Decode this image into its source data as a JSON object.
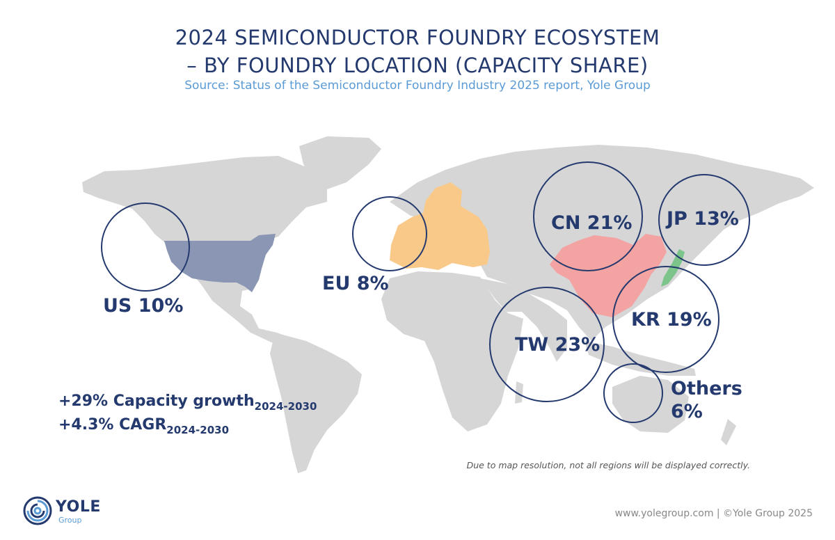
{
  "title": {
    "line1": "2024 SEMICONDUCTOR FOUNDRY ECOSYSTEM",
    "line2": "– BY FOUNDRY LOCATION (CAPACITY SHARE)"
  },
  "subtitle": "Source: Status of the Semiconductor Foundry Industry 2025 report, Yole Group",
  "colors": {
    "title": "#243a6e",
    "subtitle": "#5b9bd5",
    "land": "#d6d6d6",
    "us": "#8a96b3",
    "eu": "#f9c98a",
    "cn": "#f4a3a3",
    "jp": "#7cc48a",
    "circle": "#243a6e"
  },
  "regions": {
    "us": "US 10%",
    "eu": "EU 8%",
    "cn": "CN 21%",
    "jp": "JP 13%",
    "kr": "KR 19%",
    "tw": "TW 23%",
    "others_line1": "Others",
    "others_line2": "6%"
  },
  "growth": {
    "line1_main": "+29% Capacity growth",
    "line1_sub": "2024-2030",
    "line2_main": "+4.3% CAGR",
    "line2_sub": "2024-2030"
  },
  "note": "Due to map resolution, not all regions will be displayed correctly.",
  "footer": "www.yolegroup.com | ©Yole Group 2025",
  "logo": {
    "name": "YOLE",
    "sub": "Group",
    "icon": "yole-spiral-logo"
  }
}
